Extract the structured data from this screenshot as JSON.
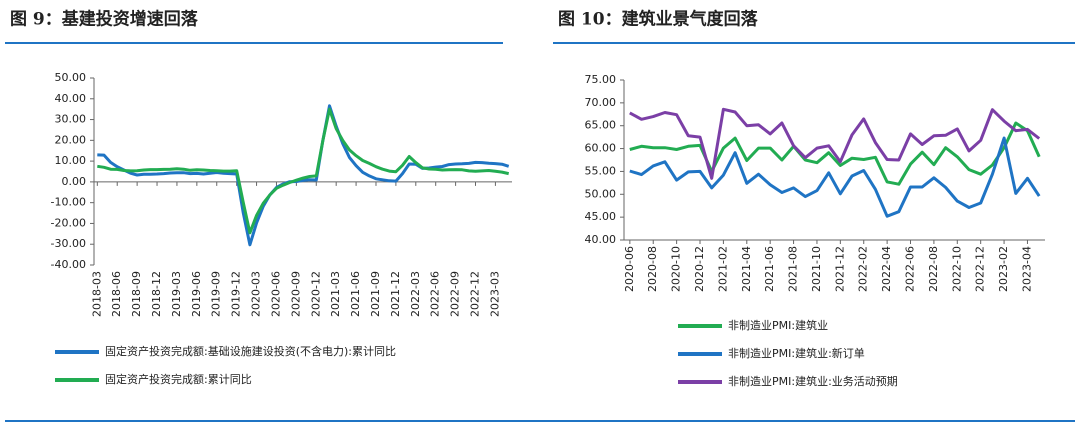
{
  "chart_data": [
    {
      "type": "line",
      "title": "图 9：基建投资增速回落",
      "categories": [
        "2018-03",
        null,
        null,
        "2018-06",
        null,
        null,
        "2018-09",
        null,
        null,
        "2018-12",
        null,
        null,
        "2019-03",
        null,
        null,
        "2019-06",
        null,
        null,
        "2019-09",
        null,
        null,
        "2019-12",
        null,
        null,
        "2020-03",
        null,
        null,
        "2020-06",
        null,
        null,
        "2020-09",
        null,
        null,
        "2020-12",
        null,
        null,
        "2021-03",
        null,
        null,
        "2021-06",
        null,
        null,
        "2021-09",
        null,
        null,
        "2021-12",
        null,
        null,
        "2022-03",
        null,
        null,
        "2022-06",
        null,
        null,
        "2022-09",
        null,
        null,
        "2022-12",
        null,
        null,
        "2023-03",
        null,
        null
      ],
      "series": [
        {
          "name": "固定资产投资完成额:基础设施建设投资(不含电力):累计同比",
          "color": "#1f74c4",
          "values": [
            13,
            12.9,
            9.4,
            7.3,
            5.7,
            4.2,
            3.3,
            3.7,
            3.7,
            3.8,
            4.0,
            4.3,
            4.4,
            4.4,
            4.0,
            4.1,
            3.8,
            4.2,
            4.5,
            4.2,
            4.0,
            3.8,
            -15,
            -30.3,
            -19.7,
            -11.8,
            -6.3,
            -2.7,
            -1.0,
            0.1,
            0.2,
            0.7,
            1.0,
            0.9,
            20,
            36.6,
            26.8,
            18.4,
            11.8,
            7.8,
            4.6,
            2.9,
            1.5,
            1.0,
            0.5,
            0.4,
            4,
            8.6,
            8.5,
            6.5,
            6.7,
            7.1,
            7.4,
            8.3,
            8.6,
            8.7,
            8.9,
            9.4,
            9.3,
            9.0,
            8.8,
            8.5,
            7.5
          ]
        },
        {
          "name": "固定资产投资完成额:累计同比",
          "color": "#22ac52",
          "values": [
            7.5,
            7.0,
            6.1,
            6.0,
            5.5,
            5.3,
            5.4,
            5.7,
            5.9,
            5.9,
            6.0,
            6.1,
            6.3,
            6.1,
            5.6,
            5.8,
            5.7,
            5.5,
            5.4,
            5.2,
            5.2,
            5.4,
            -10,
            -24.5,
            -16.1,
            -10.3,
            -6.3,
            -3.1,
            -1.6,
            -0.3,
            0.8,
            1.8,
            2.6,
            2.9,
            20,
            35.0,
            25.6,
            19.9,
            15.4,
            12.6,
            10.3,
            8.9,
            7.3,
            6.1,
            5.2,
            4.9,
            8,
            12.2,
            9.3,
            6.8,
            6.2,
            6.1,
            5.7,
            5.8,
            5.9,
            5.8,
            5.3,
            5.1,
            5.3,
            5.5,
            5.1,
            4.7,
            4.0
          ]
        }
      ],
      "ylim": [
        -40,
        50
      ],
      "yticks": [
        {
          "value": -40,
          "label": "-40.00"
        },
        {
          "value": -30,
          "label": "-30.00"
        },
        {
          "value": -20,
          "label": "-20.00"
        },
        {
          "value": -10,
          "label": "-10.00"
        },
        {
          "value": 0,
          "label": "0.00"
        },
        {
          "value": 10,
          "label": "10.00"
        },
        {
          "value": 20,
          "label": "20.00"
        },
        {
          "value": 30,
          "label": "30.00"
        },
        {
          "value": 40,
          "label": "40.00"
        },
        {
          "value": 50,
          "label": "50.00"
        }
      ],
      "legend": "bottom"
    },
    {
      "type": "line",
      "title": "图 10：建筑业景气度回落",
      "categories": [
        "2020-06",
        null,
        "2020-08",
        null,
        "2020-10",
        null,
        "2020-12",
        null,
        "2021-02",
        null,
        "2021-04",
        null,
        "2021-06",
        null,
        "2021-08",
        null,
        "2021-10",
        null,
        "2021-12",
        null,
        "2022-02",
        null,
        "2022-04",
        null,
        "2022-06",
        null,
        "2022-08",
        null,
        "2022-10",
        null,
        "2022-12",
        null,
        "2023-02",
        null,
        "2023-04",
        null
      ],
      "series": [
        {
          "name": "非制造业PMI:建筑业",
          "color": "#22ac52",
          "values": [
            59.8,
            60.5,
            60.2,
            60.2,
            59.8,
            60.5,
            60.7,
            55.0,
            60.1,
            62.3,
            57.4,
            60.1,
            60.1,
            57.5,
            60.5,
            57.5,
            56.9,
            59.1,
            56.3,
            57.9,
            57.6,
            58.1,
            52.7,
            52.2,
            56.6,
            59.2,
            56.5,
            60.2,
            58.2,
            55.4,
            54.4,
            56.4,
            60.2,
            65.6,
            63.9,
            58.2
          ]
        },
        {
          "name": "非制造业PMI:建筑业:新订单",
          "color": "#1f74c4",
          "values": [
            55.1,
            54.3,
            56.2,
            57.1,
            53.1,
            54.9,
            55.0,
            51.4,
            54.2,
            59.1,
            52.4,
            54.4,
            52.1,
            50.4,
            51.4,
            49.5,
            50.8,
            54.7,
            50.1,
            54.0,
            55.2,
            51.1,
            45.2,
            46.2,
            51.6,
            51.6,
            53.6,
            51.5,
            48.5,
            47.1,
            48.1,
            54.4,
            62.3,
            50.2,
            53.5,
            49.6
          ]
        },
        {
          "name": "非制造业PMI:建筑业:业务活动预期",
          "color": "#7b3fa6",
          "values": [
            67.8,
            66.4,
            67.0,
            67.9,
            67.4,
            62.8,
            62.5,
            53.5,
            68.6,
            68.0,
            65.0,
            65.2,
            63.2,
            65.6,
            60.6,
            58.0,
            60.1,
            60.6,
            57.1,
            63.0,
            66.5,
            61.3,
            57.6,
            57.5,
            63.2,
            60.9,
            62.8,
            62.9,
            64.3,
            59.5,
            61.8,
            68.5,
            66.0,
            63.9,
            64.2,
            62.2
          ]
        }
      ],
      "ylim": [
        40,
        75
      ],
      "yticks": [
        {
          "value": 40,
          "label": "40.00"
        },
        {
          "value": 45,
          "label": "45.00"
        },
        {
          "value": 50,
          "label": "50.00"
        },
        {
          "value": 55,
          "label": "55.00"
        },
        {
          "value": 60,
          "label": "60.00"
        },
        {
          "value": 65,
          "label": "65.00"
        },
        {
          "value": 70,
          "label": "70.00"
        },
        {
          "value": 75,
          "label": "75.00"
        }
      ],
      "legend": "bottom"
    }
  ]
}
